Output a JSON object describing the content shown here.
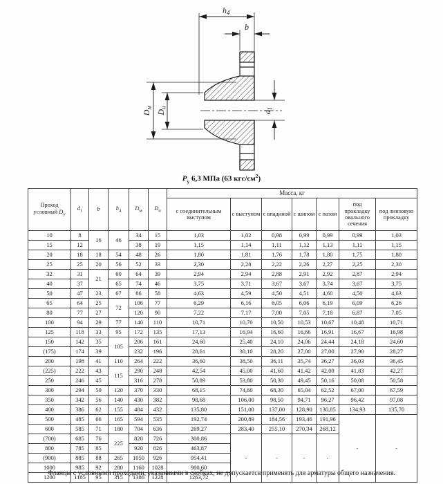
{
  "drawing": {
    "labels": {
      "h_base": "h",
      "h_sub": "4",
      "b": "b",
      "dm_base": "D",
      "dm_sub": "м",
      "dn_base": "D",
      "dn_sub": "н",
      "d1_base": "d",
      "d1_sub": "1"
    },
    "caption": {
      "p": "P",
      "p_sub": "у",
      "main": " 6,3 МПа (63 кгс/см",
      "sup": "2",
      "tail": ")"
    }
  },
  "table": {
    "mass_header": "Масса, кг",
    "col_headers": [
      {
        "pre": "Проход условный ",
        "it": "D",
        "sub": "у"
      },
      {
        "it": "d",
        "sub": "1"
      },
      {
        "it": "b"
      },
      {
        "it": "h",
        "sub": "4"
      },
      {
        "it": "D",
        "sub": "м"
      },
      {
        "it": "D",
        "sub": "н"
      }
    ],
    "mass_columns": [
      "с соединительным выступом",
      "с выступом",
      "с впадиной",
      "с шипом",
      "с пазом",
      "под прокладку овального сечения",
      "под линзовую прокладку"
    ],
    "rows": [
      [
        "10",
        "8",
        {
          "v": "16",
          "rs": 2
        },
        {
          "v": "46",
          "rs": 2
        },
        "34",
        "15",
        "1,03",
        "1,02",
        "0,98",
        "0,99",
        "0,99",
        "0,99",
        "1,03"
      ],
      [
        "15",
        "12",
        null,
        null,
        "38",
        "19",
        "1,15",
        "1,14",
        "1,11",
        "1,12",
        "1,13",
        "1,11",
        "1,15"
      ],
      [
        "20",
        "18",
        "18",
        "54",
        "48",
        "26",
        "1,80",
        "1,81",
        "1,76",
        "1,78",
        "1,80",
        "1,75",
        "1,80"
      ],
      [
        "25",
        "25",
        "20",
        "56",
        "52",
        "33",
        "2,30",
        "2,28",
        "2,22",
        "2,26",
        "2,27",
        "2,25",
        "2,30"
      ],
      [
        "32",
        "31",
        {
          "v": "21",
          "rs": 2
        },
        "60",
        "64",
        "39",
        "2,94",
        "2,94",
        "2,88",
        "2,91",
        "2,92",
        "2,87",
        "2,94"
      ],
      [
        "40",
        "37",
        null,
        "65",
        "74",
        "46",
        "3,75",
        "3,71",
        "3,67",
        "3,67",
        "3,74",
        "3,67",
        "3,75"
      ],
      [
        "50",
        "47",
        "23",
        "67",
        "86",
        "58",
        "4,63",
        "4,59",
        "4,50",
        "4,51",
        "4,60",
        "4,50",
        "4,63"
      ],
      [
        "65",
        "64",
        "25",
        {
          "v": "72",
          "rs": 2
        },
        "106",
        "77",
        "6,29",
        "6,16",
        "6,05",
        "6,06",
        "6,19",
        "6,09",
        "6,26"
      ],
      [
        "80",
        "77",
        "27",
        null,
        "120",
        "90",
        "7,22",
        "7,17",
        "7,00",
        "7,05",
        "7,18",
        "6,87",
        "7,05"
      ],
      [
        "100",
        "94",
        "29",
        "77",
        "140",
        "110",
        "10,71",
        "10,70",
        "10,50",
        "10,53",
        "10,67",
        "10,48",
        "10,71"
      ],
      [
        "125",
        "118",
        "33",
        "95",
        "172",
        "135",
        "17,13",
        "16,94",
        "16,60",
        "16,66",
        "16,91",
        "16,67",
        "16,98"
      ],
      [
        "150",
        "142",
        "35",
        {
          "v": "105",
          "rs": 2
        },
        "206",
        "161",
        "24,60",
        "25,40",
        "24,10",
        "24,06",
        "24,44",
        "24,18",
        "24,60"
      ],
      [
        "(175)",
        "174",
        "39",
        null,
        "232",
        "196",
        "28,61",
        "30,10",
        "28,20",
        "27,00",
        "27,00",
        "27,90",
        "28,27"
      ],
      [
        "200",
        "198",
        "41",
        "110",
        "264",
        "222",
        "36,60",
        "38,50",
        "36,11",
        "35,74",
        "36,27",
        "36,03",
        "36,45"
      ],
      [
        "(225)",
        "222",
        "43",
        {
          "v": "115",
          "rs": 2
        },
        "290",
        "248",
        "42,54",
        "45,00",
        "41,60",
        "41,42",
        "42,00",
        "41,83",
        "42,27"
      ],
      [
        "250",
        "246",
        "45",
        null,
        "316",
        "278",
        "50,89",
        "53,80",
        "50,30",
        "49,45",
        "50,16",
        "50,08",
        "50,58"
      ],
      [
        "300",
        "294",
        "50",
        "120",
        "370",
        "330",
        "68,15",
        "74,60",
        "68,30",
        "65,04",
        "62,52",
        "67,00",
        "67,59"
      ],
      [
        "350",
        "342",
        "56",
        "140",
        "430",
        "382",
        "98,68",
        "106,00",
        "98,50",
        "94,71",
        "96,27",
        "96,42",
        "97,08"
      ],
      [
        "400",
        "386",
        "62",
        "155",
        "484",
        "432",
        "135,80",
        "151,00",
        "137,00",
        "128,90",
        "130,85",
        "134,93",
        "135,70"
      ],
      [
        "500",
        "485",
        "66",
        "165",
        "594",
        "535",
        "192,74",
        "200,89",
        "184,56",
        "193,46",
        "191,96",
        {
          "v": "-",
          "rs": 7
        },
        {
          "v": "-",
          "rs": 7
        }
      ],
      [
        "600",
        "585",
        "71",
        "180",
        "704",
        "636",
        "269,27",
        "283,40",
        "255,10",
        "270,34",
        "268,12",
        null,
        null
      ],
      [
        "(700)",
        "685",
        "76",
        {
          "v": "225",
          "rs": 2
        },
        "820",
        "726",
        "300,86",
        {
          "v": "-",
          "rs": 5
        },
        {
          "v": "-",
          "rs": 5
        },
        {
          "v": "-",
          "rs": 5
        },
        {
          "v": "-",
          "rs": 5
        },
        null,
        null
      ],
      [
        "800",
        "785",
        "85",
        null,
        "920",
        "826",
        "463,87",
        null,
        null,
        null,
        null,
        null,
        null
      ],
      [
        "(900)",
        "885",
        "88",
        "265",
        "1050",
        "926",
        "954,41",
        null,
        null,
        null,
        null,
        null,
        null
      ],
      [
        "1000",
        "985",
        "92",
        "280",
        "1160",
        "1028",
        "980,60",
        null,
        null,
        null,
        null,
        null,
        null
      ],
      [
        "1200",
        "1185",
        "95",
        "315",
        "1386",
        "1228",
        "1263,72",
        null,
        null,
        null,
        null,
        null,
        null
      ]
    ]
  },
  "footnote": "Фланцы с условными проходами, указанными в скобках, не допускается применять для арматуры общего назначения."
}
